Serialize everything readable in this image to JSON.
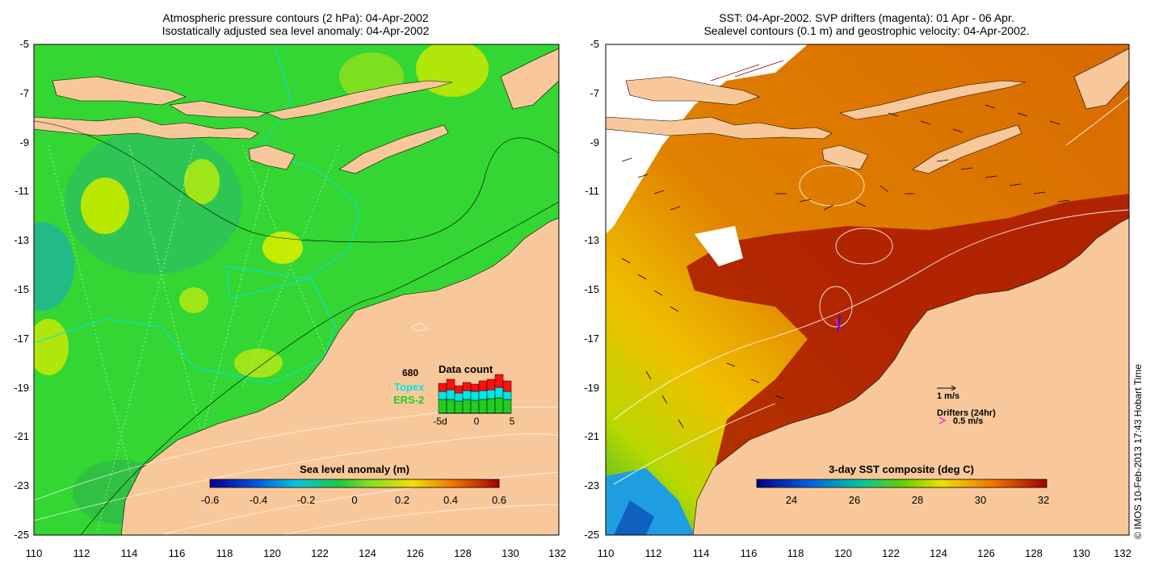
{
  "left_panel": {
    "title_line1": "Atmospheric pressure contours (2 hPa): 04-Apr-2002",
    "title_line2": "Isostatically adjusted sea level anomaly: 04-Apr-2002",
    "x_ticks": [
      "110",
      "112",
      "114",
      "116",
      "118",
      "120",
      "122",
      "124",
      "126",
      "128",
      "130",
      "132"
    ],
    "y_ticks": [
      "-5",
      "-7",
      "-9",
      "-11",
      "-13",
      "-15",
      "-17",
      "-19",
      "-21",
      "-23",
      "-25"
    ],
    "colorbar_title": "Sea level anomaly (m)",
    "colorbar_ticks": [
      "-0.6",
      "-0.4",
      "-0.2",
      "0",
      "0.2",
      "0.4",
      "0.6"
    ],
    "legend": {
      "count_value": "680",
      "topex_label": "Topex",
      "ers2_label": "ERS-2",
      "data_count_title": "Data count",
      "axis_ticks": [
        "-5d",
        "0",
        "5"
      ]
    }
  },
  "right_panel": {
    "title_line1": "SST: 04-Apr-2002. SVP drifters (magenta): 01 Apr - 06 Apr.",
    "title_line2": "Sealevel contours (0.1 m) and geostrophic velocity: 04-Apr-2002.",
    "x_ticks": [
      "110",
      "112",
      "114",
      "116",
      "118",
      "120",
      "122",
      "124",
      "126",
      "128",
      "130",
      "132"
    ],
    "y_ticks": [
      "-5",
      "-7",
      "-9",
      "-11",
      "-13",
      "-15",
      "-17",
      "-19",
      "-21",
      "-23",
      "-25"
    ],
    "colorbar_title": "3-day SST composite (deg C)",
    "colorbar_ticks": [
      "24",
      "26",
      "28",
      "30",
      "32"
    ],
    "velocity_scale_label": "1 m/s",
    "drifters_label": "Drifters (24hr)",
    "drifter_scale_label": "0.5 m/s"
  },
  "credit": "© IMOS 10-Feb-2013 17:43 Hobart Time",
  "colors": {
    "land": "#f9c89a",
    "ocean_green": "#33d633",
    "sst_warm": "#d96a00",
    "sst_hot": "#a81500",
    "topex": "#00e5e5",
    "ers2": "#22cc22",
    "drifter": "#ff00ff"
  }
}
